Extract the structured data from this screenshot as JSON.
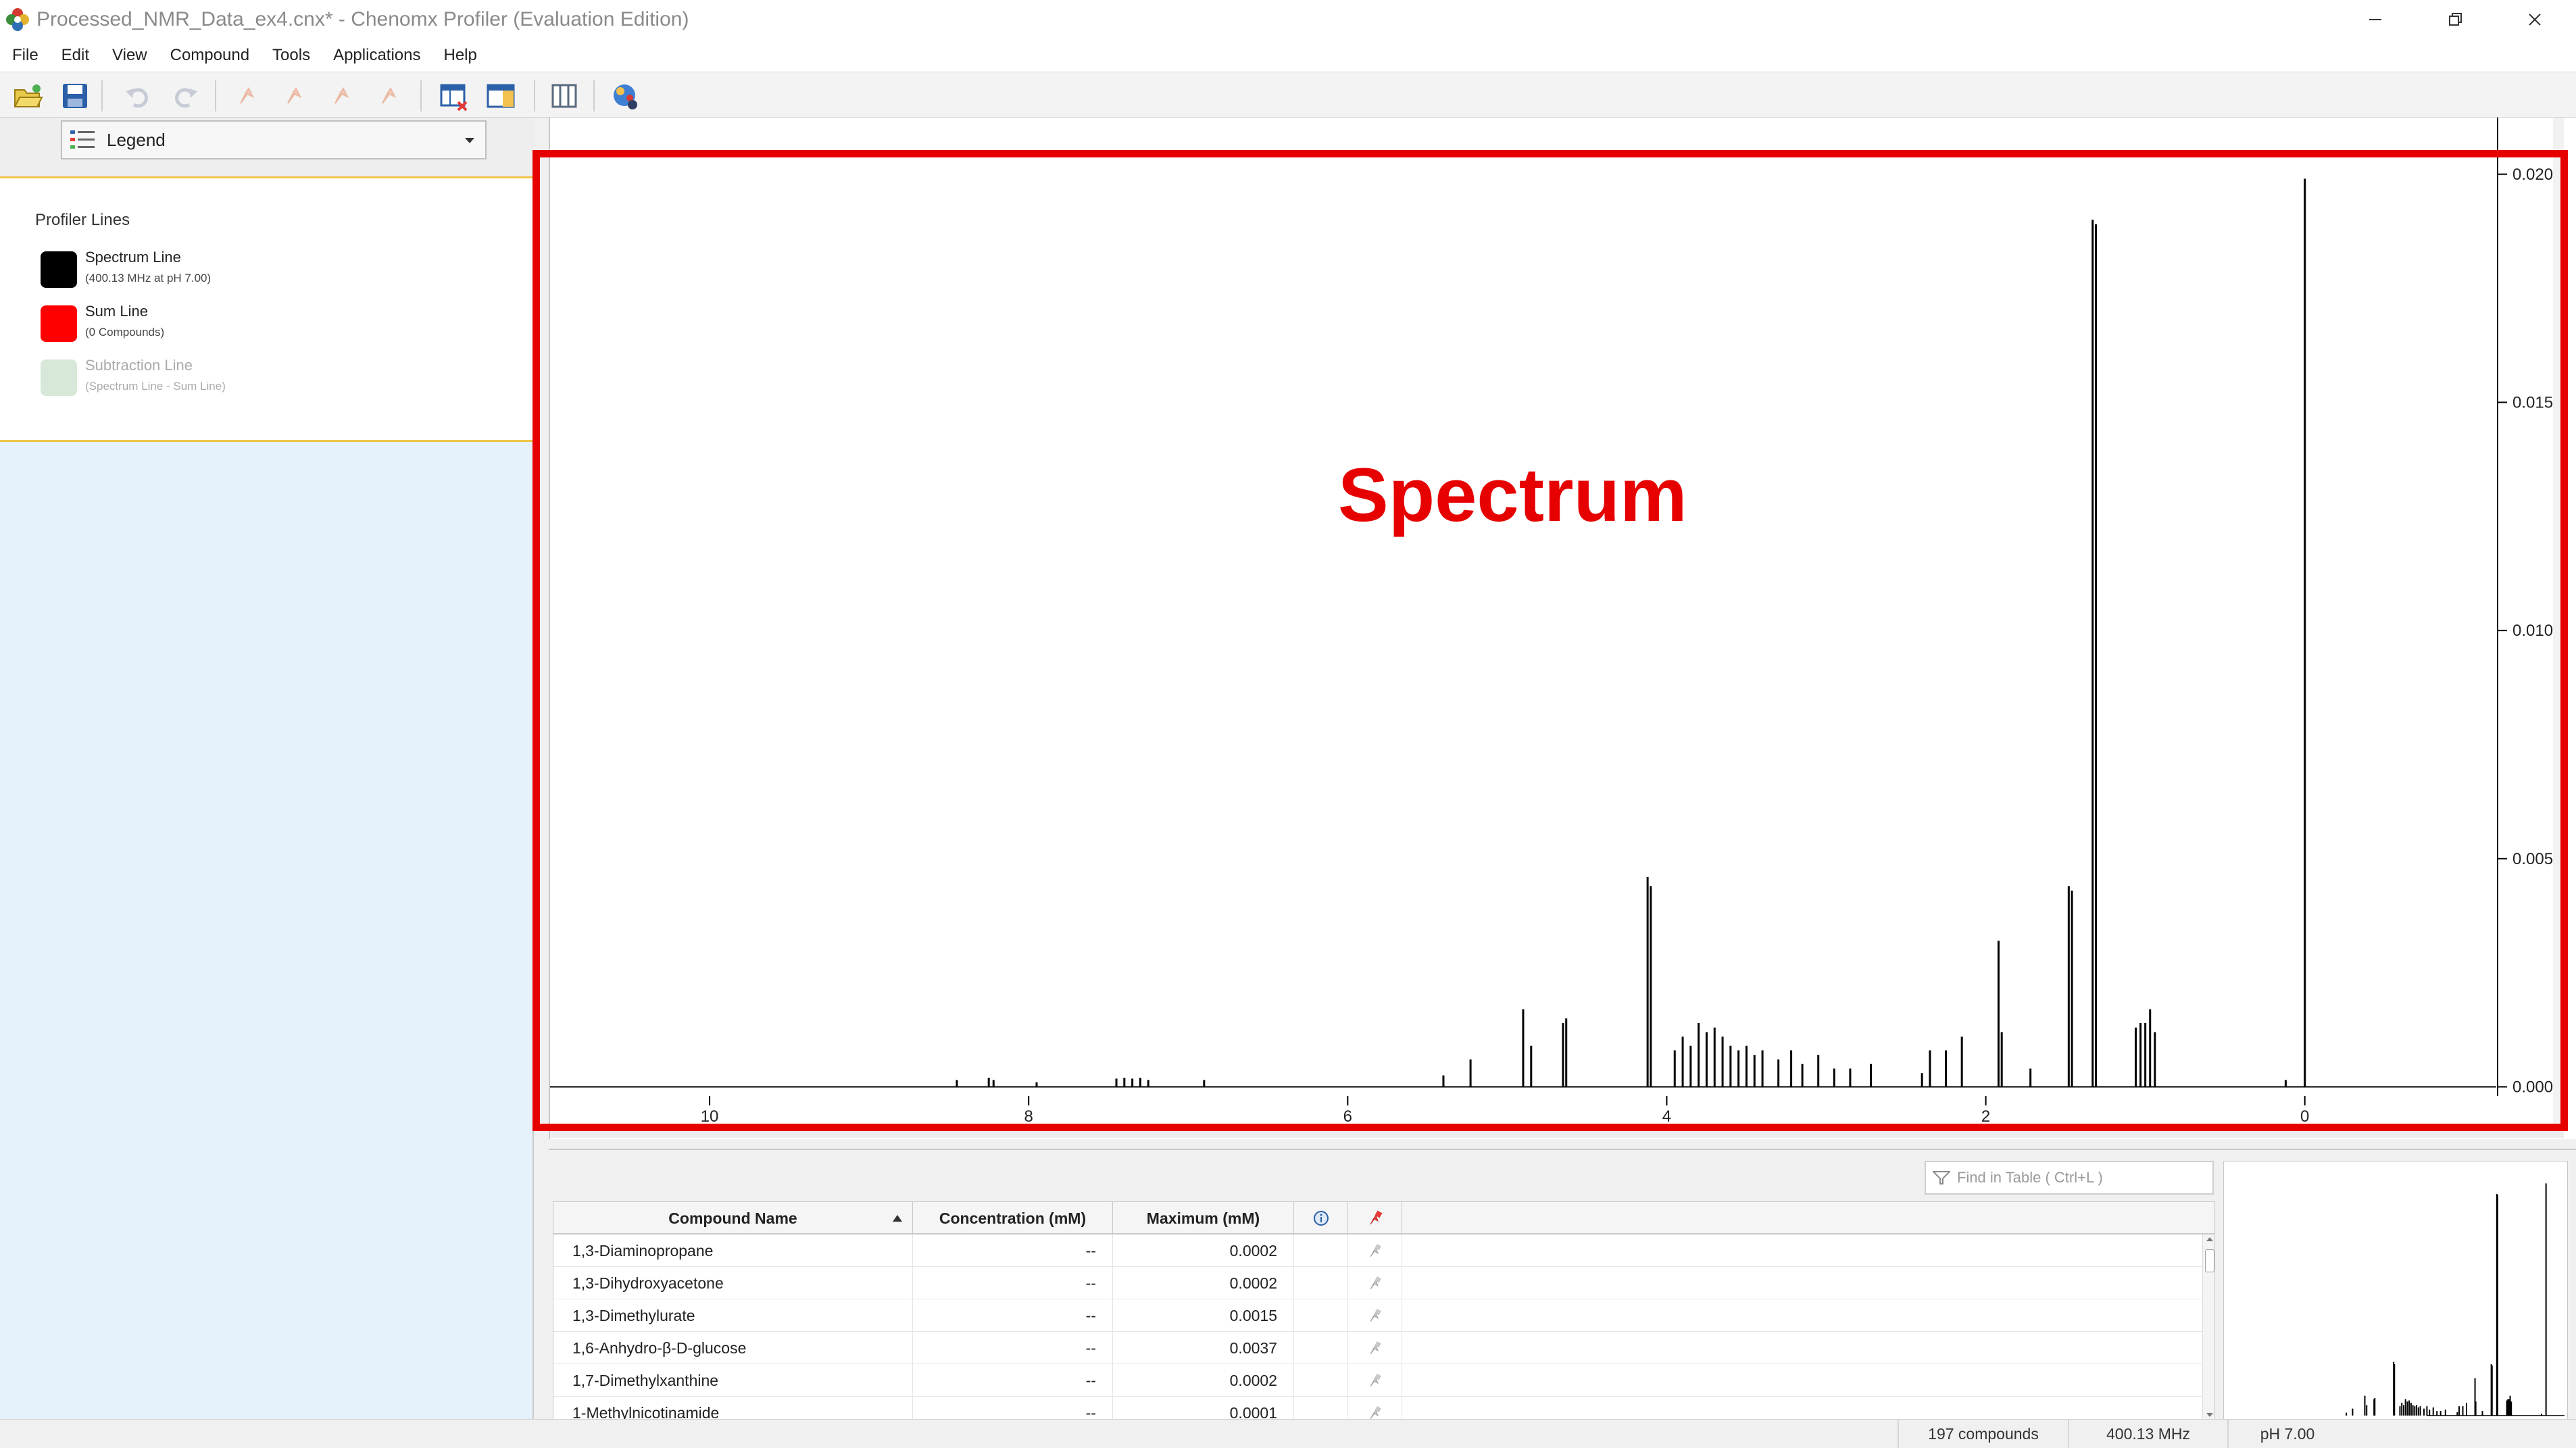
{
  "window": {
    "title": "Processed_NMR_Data_ex4.cnx* - Chenomx Profiler (Evaluation Edition)",
    "app_icon": "chenomx-flower-icon"
  },
  "menu": {
    "items": [
      "File",
      "Edit",
      "View",
      "Compound",
      "Tools",
      "Applications",
      "Help"
    ]
  },
  "toolbar": {
    "icons": [
      "open-folder-icon",
      "save-icon",
      "undo-icon",
      "redo-icon",
      "pin-tool-icon",
      "pin-tool-2-icon",
      "pin-tool-3-icon",
      "pin-tool-4-icon",
      "table-remove-icon",
      "panel-layout-icon",
      "columns-icon",
      "compound-library-icon"
    ]
  },
  "legend": {
    "dropdown_label": "Legend",
    "section_title": "Profiler Lines",
    "lines": [
      {
        "name": "Spectrum Line",
        "sub": "(400.13 MHz at pH 7.00)",
        "color": "#000000"
      },
      {
        "name": "Sum Line",
        "sub": "(0 Compounds)",
        "color": "#ff0000"
      },
      {
        "name": "Subtraction Line",
        "sub": "(Spectrum Line  - Sum Line)",
        "color": "#d8e8d8"
      }
    ]
  },
  "spectrum": {
    "overlay_label": "Spectrum",
    "overlay_color": "#e60000",
    "x_ticks": [
      "10",
      "8",
      "6",
      "4",
      "2",
      "0"
    ],
    "y_ticks": [
      "0.020",
      "0.015",
      "0.010",
      "0.005",
      "0.000"
    ]
  },
  "chart_data": {
    "type": "line",
    "x_axis_reversed": true,
    "xlim": [
      11,
      -1.2
    ],
    "ylim": [
      -0.0002,
      0.0205
    ],
    "x_ticks": [
      10,
      8,
      6,
      4,
      2,
      0
    ],
    "y_ticks": [
      0.0,
      0.005,
      0.01,
      0.015,
      0.02
    ],
    "peaks": [
      {
        "x": 8.45,
        "y": 0.00015
      },
      {
        "x": 8.25,
        "y": 0.0002
      },
      {
        "x": 8.22,
        "y": 0.00015
      },
      {
        "x": 7.95,
        "y": 0.0001
      },
      {
        "x": 7.45,
        "y": 0.00018
      },
      {
        "x": 7.4,
        "y": 0.0002
      },
      {
        "x": 7.35,
        "y": 0.00018
      },
      {
        "x": 7.3,
        "y": 0.0002
      },
      {
        "x": 7.25,
        "y": 0.00015
      },
      {
        "x": 6.9,
        "y": 0.00015
      },
      {
        "x": 5.4,
        "y": 0.00025
      },
      {
        "x": 5.23,
        "y": 0.0006
      },
      {
        "x": 4.9,
        "y": 0.0017
      },
      {
        "x": 4.85,
        "y": 0.0009
      },
      {
        "x": 4.65,
        "y": 0.0014
      },
      {
        "x": 4.63,
        "y": 0.0015
      },
      {
        "x": 4.12,
        "y": 0.0046
      },
      {
        "x": 4.1,
        "y": 0.0044
      },
      {
        "x": 3.95,
        "y": 0.0008
      },
      {
        "x": 3.9,
        "y": 0.0011
      },
      {
        "x": 3.85,
        "y": 0.0009
      },
      {
        "x": 3.8,
        "y": 0.0014
      },
      {
        "x": 3.75,
        "y": 0.0012
      },
      {
        "x": 3.7,
        "y": 0.0013
      },
      {
        "x": 3.65,
        "y": 0.0011
      },
      {
        "x": 3.6,
        "y": 0.0009
      },
      {
        "x": 3.55,
        "y": 0.0008
      },
      {
        "x": 3.5,
        "y": 0.0009
      },
      {
        "x": 3.45,
        "y": 0.0007
      },
      {
        "x": 3.4,
        "y": 0.0008
      },
      {
        "x": 3.3,
        "y": 0.0006
      },
      {
        "x": 3.22,
        "y": 0.0008
      },
      {
        "x": 3.15,
        "y": 0.0005
      },
      {
        "x": 3.05,
        "y": 0.0007
      },
      {
        "x": 2.95,
        "y": 0.0004
      },
      {
        "x": 2.85,
        "y": 0.0004
      },
      {
        "x": 2.72,
        "y": 0.0005
      },
      {
        "x": 2.4,
        "y": 0.0003
      },
      {
        "x": 2.35,
        "y": 0.0008
      },
      {
        "x": 2.25,
        "y": 0.0008
      },
      {
        "x": 2.15,
        "y": 0.0011
      },
      {
        "x": 1.92,
        "y": 0.0032
      },
      {
        "x": 1.9,
        "y": 0.0012
      },
      {
        "x": 1.72,
        "y": 0.0004
      },
      {
        "x": 1.48,
        "y": 0.0044
      },
      {
        "x": 1.46,
        "y": 0.0043
      },
      {
        "x": 1.33,
        "y": 0.019
      },
      {
        "x": 1.31,
        "y": 0.0189
      },
      {
        "x": 1.06,
        "y": 0.0013
      },
      {
        "x": 1.03,
        "y": 0.0014
      },
      {
        "x": 1.0,
        "y": 0.0014
      },
      {
        "x": 0.97,
        "y": 0.0017
      },
      {
        "x": 0.94,
        "y": 0.0012
      },
      {
        "x": 0.12,
        "y": 0.00015
      },
      {
        "x": 0.0,
        "y": 0.0199
      }
    ]
  },
  "search": {
    "placeholder": "Find in Table ( Ctrl+L )"
  },
  "table": {
    "headers": {
      "name": "Compound Name",
      "concentration": "Concentration (mM)",
      "maximum": "Maximum (mM)"
    },
    "rows": [
      {
        "name": "1,3-Diaminopropane",
        "concentration": "--",
        "maximum": "0.0002"
      },
      {
        "name": "1,3-Dihydroxyacetone",
        "concentration": "--",
        "maximum": "0.0002"
      },
      {
        "name": "1,3-Dimethylurate",
        "concentration": "--",
        "maximum": "0.0015"
      },
      {
        "name": "1,6-Anhydro-β-D-glucose",
        "concentration": "--",
        "maximum": "0.0037"
      },
      {
        "name": "1,7-Dimethylxanthine",
        "concentration": "--",
        "maximum": "0.0002"
      },
      {
        "name": "1-Methylnicotinamide",
        "concentration": "--",
        "maximum": "0.0001"
      }
    ]
  },
  "status": {
    "compounds": "197 compounds",
    "frequency": "400.13 MHz",
    "ph": "pH 7.00"
  }
}
